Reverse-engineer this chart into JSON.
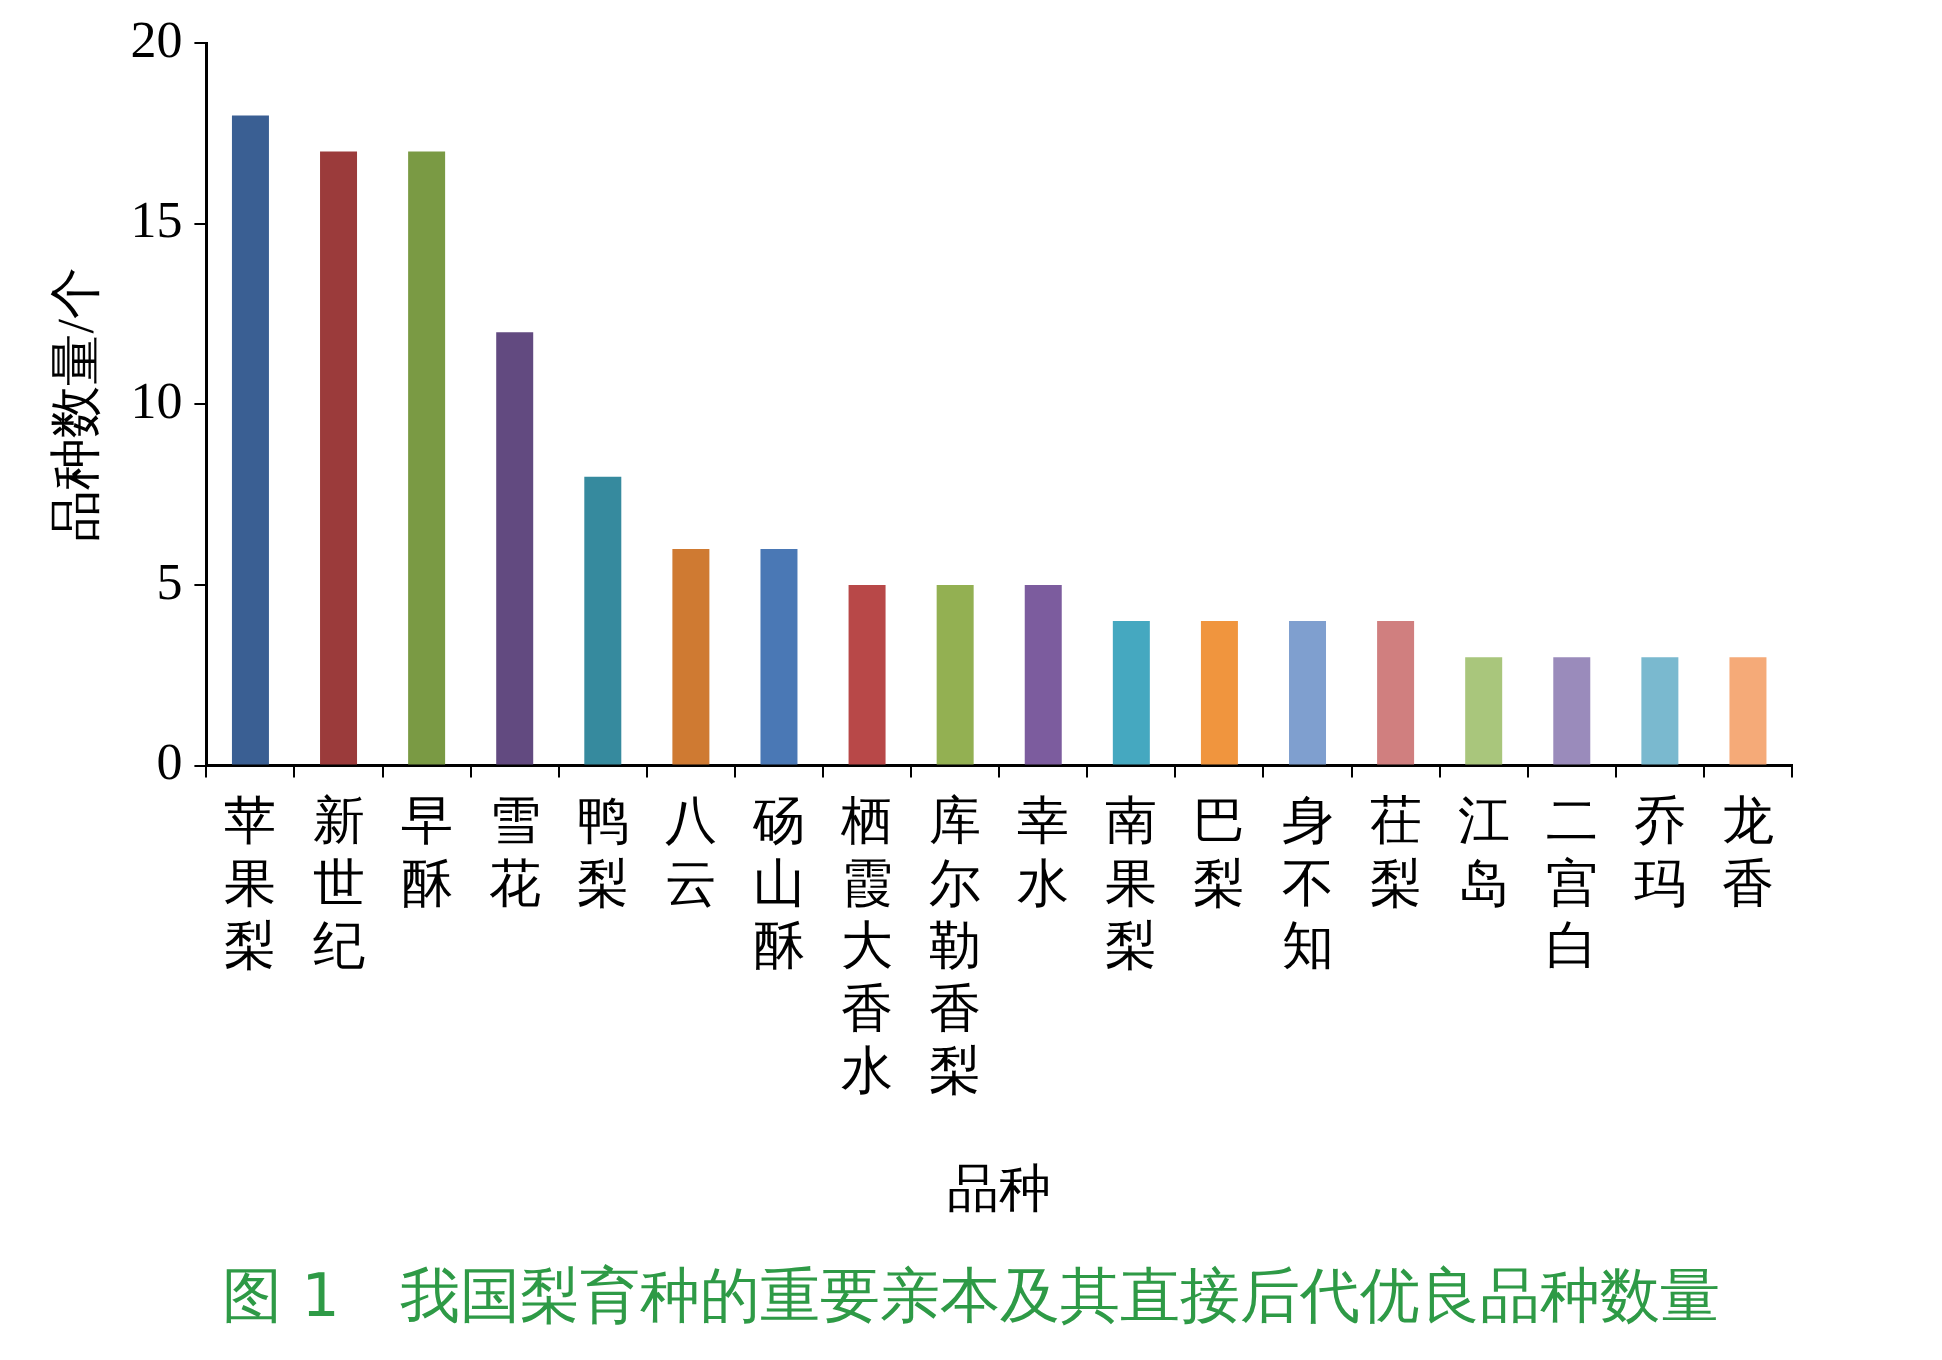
{
  "chart_data": {
    "type": "bar",
    "title": "图 1　我国梨育种的重要亲本及其直接后代优良品种数量",
    "xlabel": "品种",
    "ylabel": "品种数量/个",
    "categories": [
      "苹果梨",
      "新世纪",
      "早酥",
      "雪花",
      "鸭梨",
      "八云",
      "砀山酥",
      "栖霞大香水",
      "库尔勒香梨",
      "幸水",
      "南果梨",
      "巴梨",
      "身不知",
      "茌梨",
      "江岛",
      "二宫白",
      "乔玛",
      "龙香"
    ],
    "values": [
      18,
      17,
      17,
      12,
      8,
      6,
      6,
      5,
      5,
      5,
      4,
      4,
      4,
      4,
      3,
      3,
      3,
      3
    ],
    "colors": [
      "#3a5f93",
      "#9b3b3b",
      "#7a9a44",
      "#624a80",
      "#368a9e",
      "#cf7a32",
      "#4a78b5",
      "#b84848",
      "#93b052",
      "#7c5c9e",
      "#45a8c0",
      "#f0953e",
      "#7f9fcf",
      "#d07f7f",
      "#a9c67c",
      "#9a8bbb",
      "#7ab9cf",
      "#f5aa78"
    ],
    "ylim": [
      0,
      20
    ],
    "yticks": [
      0,
      5,
      10,
      15,
      20
    ],
    "grid": false,
    "legend": false
  }
}
